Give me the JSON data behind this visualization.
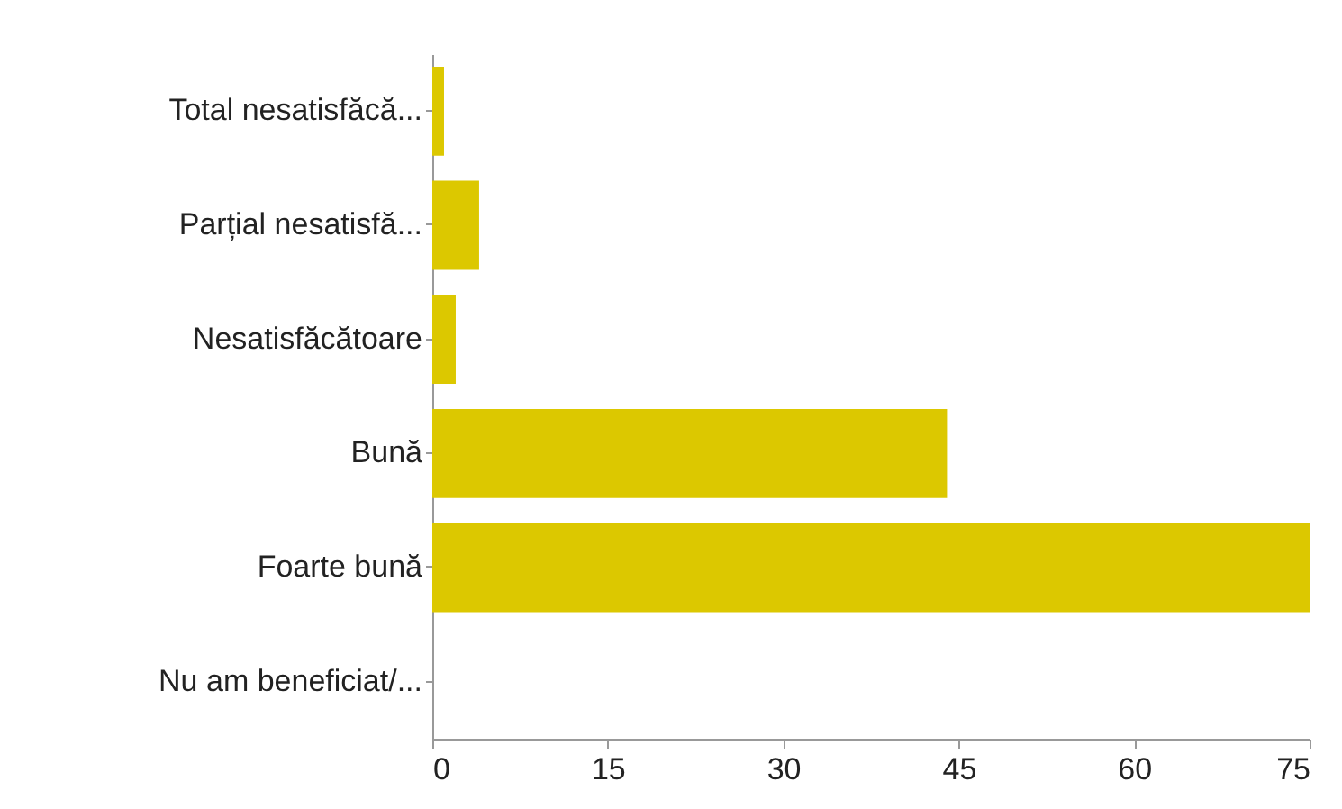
{
  "chart_data": {
    "type": "bar",
    "orientation": "horizontal",
    "categories": [
      "Total nesatisfăcă...",
      "Parțial nesatisfă...",
      "Nesatisfăcătoare",
      "Bună",
      "Foarte bună",
      "Nu am beneficiat/..."
    ],
    "values": [
      1,
      4,
      2,
      44,
      75,
      0
    ],
    "color": "#dcc800",
    "xlim": [
      0,
      75
    ],
    "xticks": [
      0,
      15,
      30,
      45,
      60,
      75
    ],
    "grid": false
  }
}
